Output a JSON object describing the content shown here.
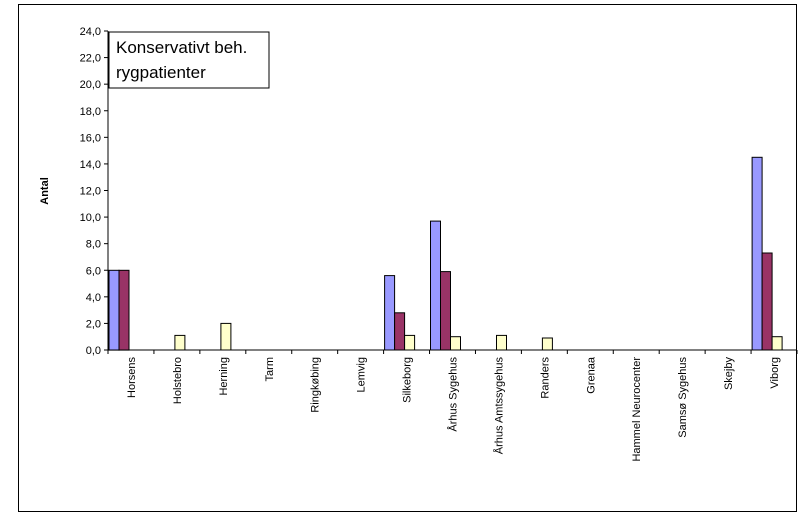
{
  "chart_data": {
    "type": "bar",
    "title_lines": [
      "Konservativt beh.",
      "rygpatienter"
    ],
    "xlabel": "",
    "ylabel": "Antal",
    "ylim": [
      0,
      24
    ],
    "ytick_step": 2,
    "ytick_labels": [
      "0,0",
      "2,0",
      "4,0",
      "6,0",
      "8,0",
      "10,0",
      "12,0",
      "14,0",
      "16,0",
      "18,0",
      "20,0",
      "22,0",
      "24,0"
    ],
    "grid": false,
    "legend": "none",
    "categories": [
      "Horsens",
      "Holstebro",
      "Herning",
      "Tarm",
      "Ringkøbing",
      "Lemvig",
      "Silkeborg",
      "Århus Sygehus",
      "Århus Amtssygehus",
      "Randers",
      "Grenaa",
      "Hammel Neurocenter",
      "Samsø Sygehus",
      "Skejby",
      "Viborg"
    ],
    "series": [
      {
        "color": "#9999ff",
        "values": [
          6.0,
          0,
          0,
          0,
          0,
          0,
          5.6,
          9.7,
          0,
          0,
          0,
          0,
          0,
          0,
          14.5
        ]
      },
      {
        "color": "#993366",
        "values": [
          6.0,
          0,
          0,
          0,
          0,
          0,
          2.8,
          5.9,
          0,
          0,
          0,
          0,
          0,
          0,
          7.3
        ]
      },
      {
        "color": "#ffffcc",
        "values": [
          0,
          1.1,
          2.0,
          0,
          0,
          0,
          1.1,
          1.0,
          1.1,
          0.9,
          0,
          0,
          0,
          0,
          1.0
        ]
      }
    ]
  }
}
